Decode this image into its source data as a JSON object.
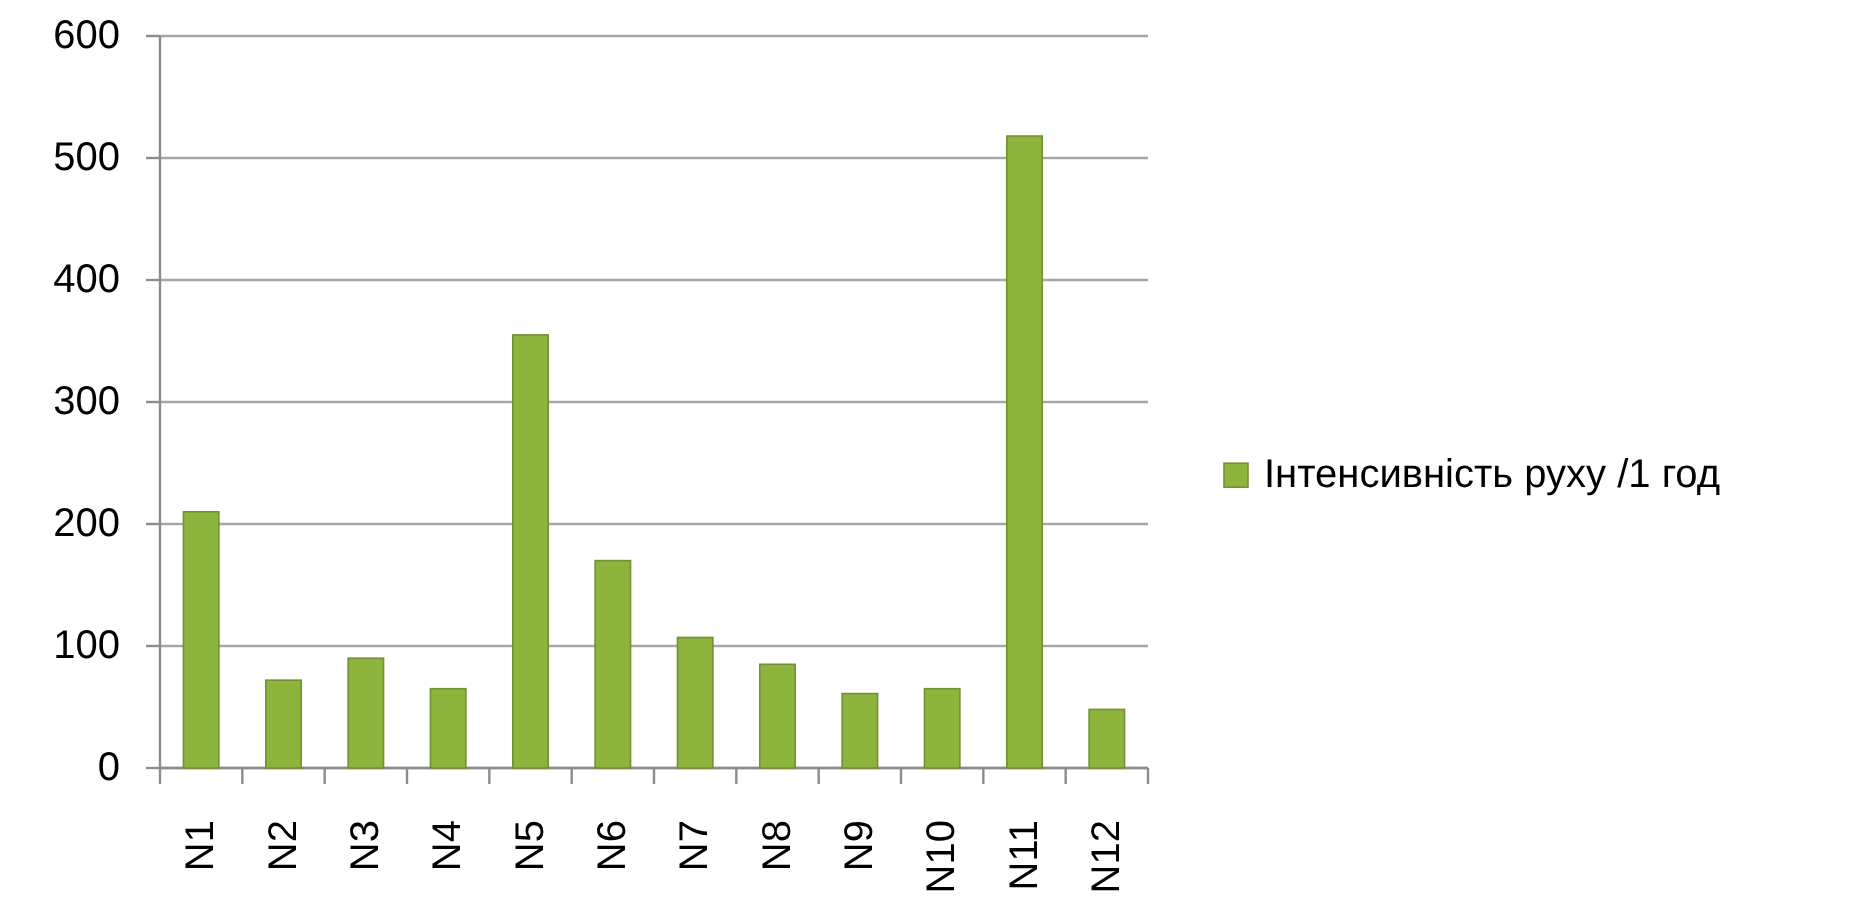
{
  "chart_data": {
    "type": "bar",
    "categories": [
      "N1",
      "N2",
      "N3",
      "N4",
      "N5",
      "N6",
      "N7",
      "N8",
      "N9",
      "N10",
      "N11",
      "N12"
    ],
    "series": [
      {
        "name": "Інтенсивність руху /1 год",
        "color": "#8db43c",
        "values": [
          210,
          72,
          90,
          65,
          355,
          170,
          107,
          85,
          61,
          65,
          518,
          48
        ]
      }
    ],
    "ylim": [
      0,
      600
    ],
    "yticks": [
      0,
      100,
      200,
      300,
      400,
      500,
      600
    ],
    "grid": "y",
    "legend": "right"
  }
}
